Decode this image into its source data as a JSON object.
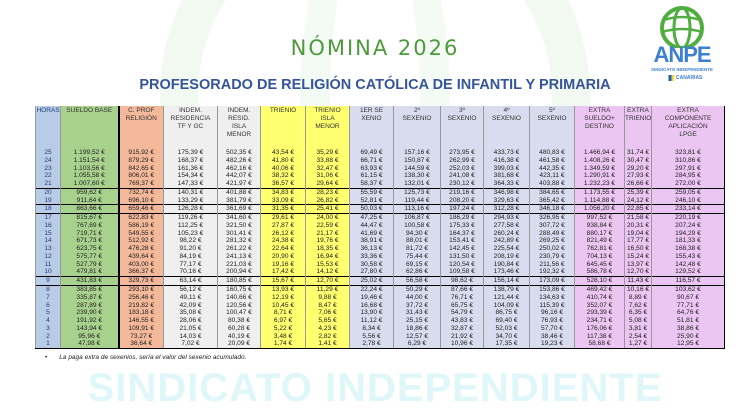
{
  "watermark": {
    "text": "SINDICATO INDEPENDIENTE"
  },
  "logo": {
    "name": "ANPE",
    "subtitle": "SINDICATO INDEPENDIENTE",
    "region": "CANARIAS"
  },
  "colors": {
    "title": "#4c9a3c",
    "subtitle": "#35559b",
    "horas": "#b8cce8",
    "sueldo": "#a9d18e",
    "prof": "#f4b99a",
    "indem": "#efefef",
    "trienio": "#ffff70",
    "sexenio": "#d9dcee",
    "extra": "#ebc6f2"
  },
  "header": {
    "title": "NÓMINA 2026",
    "subtitle": "PROFESORADO DE RELIGIÓN CATÓLICA DE INFANTIL Y PRIMARIA"
  },
  "table": {
    "columns": [
      "HORAS",
      "SUELDO BASE",
      "C. PROF\nRELIGIÓN",
      "INDEM.\nRESIDENCIA\nTF Y GC",
      "INDEM.\nRESID.\nISLA\nMENOR",
      "TRIENIO",
      "TRIENIO\nISLA\nMENOR",
      "1ER SE\nXENIO",
      "2º\nSEXENIO",
      "3º\nSEXENIO",
      "4º\nSEXENIO",
      "5º\nSEXENIO",
      "EXTRA\nSUELDO+\nDESTINO",
      "EXTRA\nTRIENIO",
      "EXTRA\nCOMPONENTE\nAPLICACIÓN\nLPGE"
    ],
    "rows": [
      [
        "25",
        "1.199,52 €",
        "915,92 €",
        "175,39 €",
        "502,35 €",
        "43,54 €",
        "35,29 €",
        "69,49 €",
        "157,16 €",
        "273,95 €",
        "433,73 €",
        "480,83 €",
        "1.466,94 €",
        "31,74 €",
        "323,81 €"
      ],
      [
        "24",
        "1.151,54 €",
        "879,29 €",
        "168,37 €",
        "482,26 €",
        "41,80 €",
        "33,88 €",
        "66,71 €",
        "150,87 €",
        "262,99 €",
        "416,38 €",
        "461,58 €",
        "1.408,26 €",
        "30,47 €",
        "310,86 €"
      ],
      [
        "23",
        "1.103,56 €",
        "842,65 €",
        "161,36 €",
        "462,16 €",
        "40,06 €",
        "32,47 €",
        "63,93 €",
        "144,59 €",
        "252,03 €",
        "399,03 €",
        "442,35 €",
        "1.349,59 €",
        "29,20 €",
        "297,91 €"
      ],
      [
        "22",
        "1.055,58 €",
        "806,01 €",
        "154,34 €",
        "442,07 €",
        "38,32 €",
        "31,06 €",
        "61,15 €",
        "138,30 €",
        "241,08 €",
        "381,68 €",
        "423,11 €",
        "1.290,91 €",
        "27,93 €",
        "284,95 €"
      ],
      [
        "21",
        "1.007,60 €",
        "769,37 €",
        "147,33 €",
        "421,97 €",
        "36,57 €",
        "29,64 €",
        "58,37 €",
        "132,01 €",
        "230,12 €",
        "364,33 €",
        "403,88 €",
        "1.232,23 €",
        "26,66 €",
        "272,00 €"
      ],
      [
        "20",
        "959,62 €",
        "732,74 €",
        "140,31 €",
        "401,88 €",
        "34,83 €",
        "28,23 €",
        "55,59 €",
        "125,73 €",
        "219,16 €",
        "346,98 €",
        "384,65 €",
        "1.173,55 €",
        "25,39 €",
        "259,05 €"
      ],
      [
        "19",
        "911,64 €",
        "696,10 €",
        "133,29 €",
        "381,79 €",
        "33,09 €",
        "26,82 €",
        "52,81 €",
        "119,44 €",
        "208,20 €",
        "329,63 €",
        "365,42 €",
        "1.114,88 €",
        "24,12 €",
        "246,10 €"
      ],
      [
        "18",
        "863,66 €",
        "659,46 €",
        "126,28 €",
        "361,69 €",
        "31,35 €",
        "25,41 €",
        "50,03 €",
        "113,16 €",
        "197,24 €",
        "312,28 €",
        "346,18 €",
        "1.056,20 €",
        "22,85 €",
        "233,14 €"
      ],
      [
        "17",
        "815,67 €",
        "622,83 €",
        "119,26 €",
        "341,60 €",
        "29,61 €",
        "24,00 €",
        "47,25 €",
        "106,87 €",
        "186,29 €",
        "294,93 €",
        "326,95 €",
        "997,52 €",
        "21,58 €",
        "220,19 €"
      ],
      [
        "16",
        "767,69 €",
        "586,19 €",
        "112,25 €",
        "321,50 €",
        "27,87 €",
        "22,59 €",
        "44,47 €",
        "100,58 €",
        "175,33 €",
        "277,58 €",
        "307,72 €",
        "938,84 €",
        "20,31 €",
        "207,24 €"
      ],
      [
        "15",
        "719,71 €",
        "549,55 €",
        "105,23 €",
        "301,41 €",
        "26,12 €",
        "21,17 €",
        "41,69 €",
        "94,30 €",
        "164,37 €",
        "260,24 €",
        "288,49 €",
        "880,17 €",
        "19,04 €",
        "194,29 €"
      ],
      [
        "14",
        "671,73 €",
        "512,92 €",
        "98,22 €",
        "281,32 €",
        "24,38 €",
        "19,76 €",
        "38,91 €",
        "88,01 €",
        "153,41 €",
        "242,89 €",
        "269,25 €",
        "821,49 €",
        "17,77 €",
        "181,33 €"
      ],
      [
        "13",
        "623,75 €",
        "476,28 €",
        "91,20 €",
        "261,22 €",
        "22,64 €",
        "18,35 €",
        "36,13 €",
        "81,72 €",
        "142,45 €",
        "225,54 €",
        "250,02 €",
        "762,81 €",
        "16,50 €",
        "168,38 €"
      ],
      [
        "12",
        "575,77 €",
        "439,64 €",
        "84,19 €",
        "241,13 €",
        "20,90 €",
        "16,94 €",
        "33,36 €",
        "75,44 €",
        "131,50 €",
        "208,19 €",
        "230,79 €",
        "704,13 €",
        "15,24 €",
        "155,43 €"
      ],
      [
        "11",
        "527,79 €",
        "403,00 €",
        "77,17 €",
        "221,03 €",
        "19,16 €",
        "15,53 €",
        "30,58 €",
        "69,15 €",
        "120,54 €",
        "190,84 €",
        "211,56 €",
        "645,45 €",
        "13,97 €",
        "142,48 €"
      ],
      [
        "10",
        "479,81 €",
        "366,37 €",
        "70,16 €",
        "200,94 €",
        "17,42 €",
        "14,12 €",
        "27,80 €",
        "62,86 €",
        "109,58 €",
        "173,46 €",
        "192,32 €",
        "586,78 €",
        "12,70 €",
        "129,52 €"
      ],
      [
        "9",
        "431,83 €",
        "329,73 €",
        "63,14 €",
        "180,85 €",
        "15,67 €",
        "12,70 €",
        "25,02 €",
        "56,58 €",
        "98,62 €",
        "156,14 €",
        "173,09 €",
        "528,10 €",
        "11,43 €",
        "116,57 €"
      ],
      [
        "8",
        "383,85 €",
        "293,10 €",
        "56,12 €",
        "160,75 €",
        "13,93 €",
        "11,29 €",
        "22,24 €",
        "50,29 €",
        "87,66 €",
        "138,79 €",
        "153,86 €",
        "469,42 €",
        "10,16 €",
        "103,62 €"
      ],
      [
        "7",
        "335,87 €",
        "256,46 €",
        "49,11 €",
        "140,66 €",
        "12,19 €",
        "9,88 €",
        "19,46 €",
        "44,00 €",
        "76,71 €",
        "121,44 €",
        "134,63 €",
        "410,74 €",
        "8,89 €",
        "90,67 €"
      ],
      [
        "6",
        "287,89 €",
        "219,82 €",
        "42,09 €",
        "120,56 €",
        "10,45 €",
        "8,47 €",
        "16,68 €",
        "37,72 €",
        "65,75 €",
        "104,09 €",
        "115,39 €",
        "352,07 €",
        "7,62 €",
        "77,71 €"
      ],
      [
        "5",
        "239,90 €",
        "183,18 €",
        "35,08 €",
        "100,47 €",
        "8,71 €",
        "7,06 €",
        "13,90 €",
        "31,43 €",
        "54,79 €",
        "86,75 €",
        "96,16 €",
        "293,39 €",
        "6,35 €",
        "64,76 €"
      ],
      [
        "4",
        "191,92 €",
        "146,55 €",
        "28,06 €",
        "80,38 €",
        "6,97 €",
        "5,65 €",
        "11,12 €",
        "25,15 €",
        "43,83 €",
        "69,40 €",
        "76,93 €",
        "234,71 €",
        "5,08 €",
        "51,81 €"
      ],
      [
        "3",
        "143,94 €",
        "109,91 €",
        "21,05 €",
        "60,28 €",
        "5,22 €",
        "4,23 €",
        "8,34 €",
        "18,86 €",
        "32,87 €",
        "52,03 €",
        "57,70 €",
        "176,06 €",
        "3,81 €",
        "38,86 €"
      ],
      [
        "2",
        "95,96 €",
        "73,27 €",
        "14,03 €",
        "40,19 €",
        "3,48 €",
        "2,82 €",
        "5,56 €",
        "12,57 €",
        "21,92 €",
        "34,70 €",
        "38,46 €",
        "117,38 €",
        "2,54 €",
        "25,90 €"
      ],
      [
        "1",
        "47,98 €",
        "36,64 €",
        "7,02 €",
        "20,09 €",
        "1,74 €",
        "1,41 €",
        "2,78 €",
        "6,29 €",
        "10,96 €",
        "17,35 €",
        "19,23 €",
        "58,68 €",
        "1,27 €",
        "12,95 €"
      ]
    ]
  },
  "footnote": "La paga extra de sexenios, sería el valor del sexenio acumulado."
}
